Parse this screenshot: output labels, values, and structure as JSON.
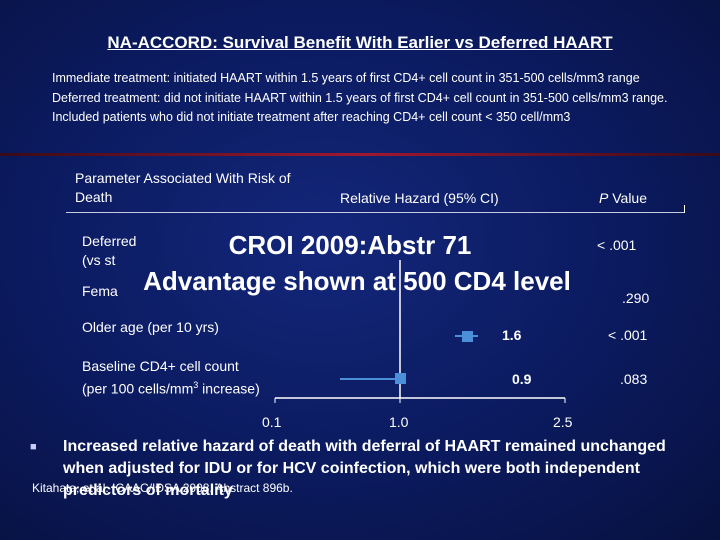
{
  "slide": {
    "title": "NA-ACCORD: Survival Benefit With Earlier vs Deferred HAART",
    "definitions": [
      "Immediate treatment: initiated HAART within 1.5 years of first CD4+ cell count in 351-500 cells/mm3 range",
      "Deferred treatment: did not initiate HAART within 1.5 years of first CD4+ cell count in 351-500 cells/mm3 range. Included patients who did not initiate treatment after reaching CD4+ cell count < 350 cell/mm3"
    ],
    "table_header": {
      "parameter": "Parameter Associated With Risk of Death",
      "relative_hazard": "Relative Hazard (95% CI)",
      "p_value_italic": "P",
      "p_value_rest": " Value"
    },
    "rows": [
      {
        "label_line1": "Deferred",
        "label_line2": "(vs st",
        "p_value": "< .001"
      },
      {
        "label_line1": "Fema",
        "p_value": ".290"
      },
      {
        "label_line1": "Older age (per 10 yrs)",
        "hr": "1.6",
        "p_value": "< .001"
      },
      {
        "label_line1": "Baseline CD4+ cell count",
        "label_line2_pre": "(per 100 cells/mm",
        "label_line2_sup": "3",
        "label_line2_post": " increase)",
        "hr": "0.9",
        "p_value": ".083"
      }
    ],
    "overlay_line1": "CROI 2009:Abstr 71",
    "overlay_line2": "Advantage shown at 500 CD4 level",
    "axis_ticks": [
      "0.1",
      "1.0",
      "2.5"
    ],
    "bullet": "Increased relative hazard of death with deferral of HAART remained unchanged when adjusted for IDU or for HCV coinfection, which were both independent predictors of mortality",
    "citation": "Kitahata, et al. ICAAC/IDSA 2008. Abstract 896b."
  },
  "colors": {
    "background": "#0b1a5e",
    "text": "#ffffff",
    "marker": "#4a8fd8",
    "rule": "#a01830"
  }
}
